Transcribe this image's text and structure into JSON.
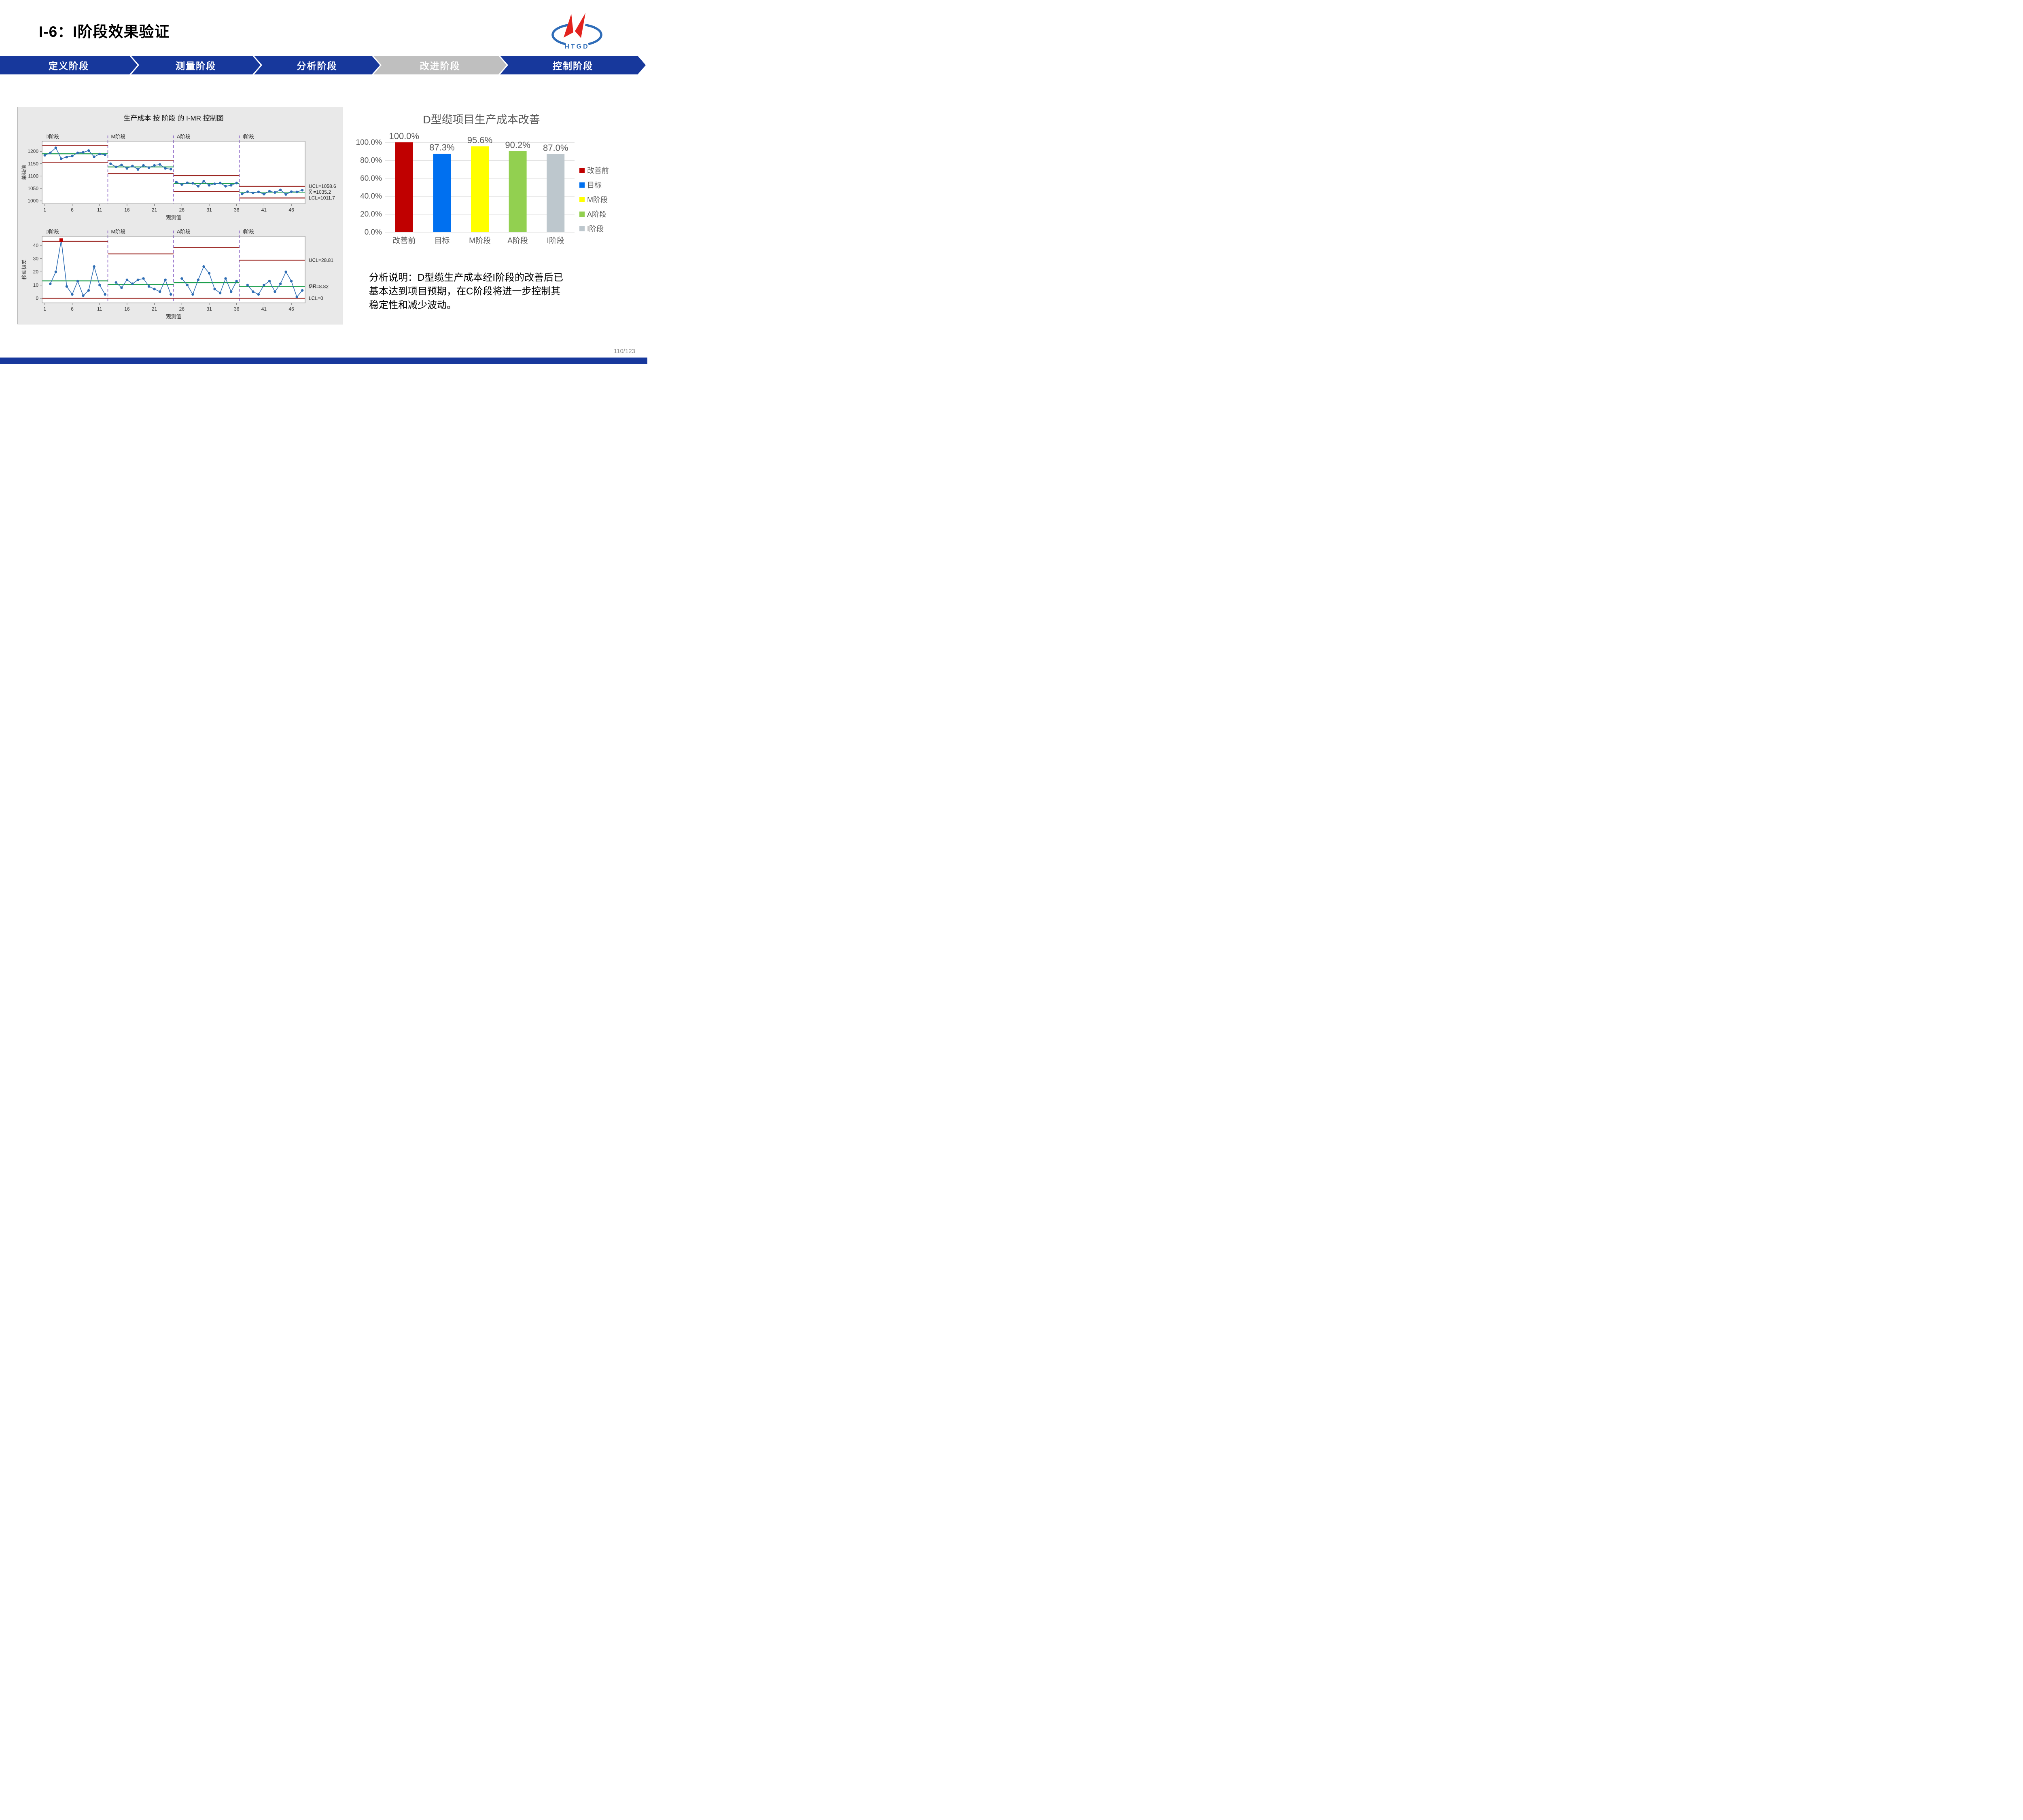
{
  "page": {
    "title": "I-6：I阶段效果验证",
    "page_number": "110/123",
    "accent_blue": "#17389C"
  },
  "logo": {
    "text": "HTGD",
    "red": "#E3231E",
    "blue": "#2E6CB8"
  },
  "phase_bar": {
    "blue": "#17389C",
    "gray": "#BFBFBF",
    "steps": [
      {
        "label": "定义阶段",
        "highlighted": false
      },
      {
        "label": "测量阶段",
        "highlighted": false
      },
      {
        "label": "分析阶段",
        "highlighted": false
      },
      {
        "label": "改进阶段",
        "highlighted": true
      },
      {
        "label": "控制阶段",
        "highlighted": false
      }
    ]
  },
  "chart_data": [
    {
      "type": "line",
      "chart": "I-MR control chart by stage",
      "title": "生产成本 按 阶段 的 I-MR 控制图",
      "xlabel": "观测值",
      "x_ticks": [
        1,
        6,
        11,
        16,
        21,
        26,
        31,
        36,
        41,
        46
      ],
      "x_range": [
        0.5,
        48.5
      ],
      "stage_boundaries": [
        12.5,
        24.5,
        36.5
      ],
      "colors": {
        "point": "#2E6DB4",
        "line": "#2E6DB4",
        "limit": "#9C2824",
        "center": "#1B9E4B",
        "boundary": "#8A64C6",
        "out_of_control": "#C00000",
        "panel_bg": "#E9E9E9",
        "plot_bg": "#FFFFFF"
      },
      "panels": [
        {
          "name": "individuals",
          "ylabel": "单独值",
          "ylim": [
            988,
            1241
          ],
          "yticks": [
            1000,
            1050,
            1100,
            1150,
            1200
          ],
          "annotations": [
            {
              "text": "UCL=1058.6",
              "value": 1058.6
            },
            {
              "text": "X̅ =1035.2",
              "value": 1035.2
            },
            {
              "text": "LCL=1011.7",
              "value": 1011.7
            }
          ],
          "stages": [
            {
              "label": "D阶段",
              "start_obs": 1,
              "ucl": 1224,
              "cl": 1190,
              "lcl": 1156,
              "values": [
                1184,
                1194,
                1214,
                1170,
                1177,
                1181,
                1194,
                1196,
                1203,
                1178,
                1189,
                1186
              ]
            },
            {
              "label": "M阶段",
              "start_obs": 13,
              "ucl": 1164,
              "cl": 1137,
              "lcl": 1110,
              "values": [
                1150,
                1137,
                1145,
                1131,
                1141,
                1127,
                1143,
                1134,
                1143,
                1147,
                1131,
                1128
              ]
            },
            {
              "label": "A阶段",
              "start_obs": 25,
              "ucl": 1102,
              "cl": 1070,
              "lcl": 1038,
              "values": [
                1076,
                1066,
                1073,
                1071,
                1059,
                1079,
                1063,
                1069,
                1072,
                1059,
                1063,
                1072
              ]
            },
            {
              "label": "I阶段",
              "start_obs": 37,
              "ucl": 1058.6,
              "cl": 1035.2,
              "lcl": 1011.7,
              "values": [
                1028,
                1037,
                1032,
                1036,
                1027,
                1039,
                1034,
                1044,
                1026,
                1037,
                1036,
                1043
              ]
            }
          ]
        },
        {
          "name": "moving_range",
          "ylabel": "移动极差",
          "ylim": [
            -3.5,
            47
          ],
          "yticks": [
            0,
            10,
            20,
            30,
            40
          ],
          "annotations": [
            {
              "text": "UCL=28.81",
              "value": 28.81
            },
            {
              "text": "M̅R̅=8.82",
              "value": 8.82
            },
            {
              "text": "LCL=0",
              "value": 0
            }
          ],
          "out_of_control": [
            {
              "obs": 4,
              "value": 44
            }
          ],
          "stages": [
            {
              "label": "D阶段",
              "start_obs": 2,
              "ucl": 43.1,
              "cl": 13.2,
              "lcl": 0,
              "values": [
                11,
                20,
                44,
                9,
                3,
                13,
                2,
                6,
                24,
                10,
                3
              ]
            },
            {
              "label": "M阶段",
              "start_obs": 14,
              "ucl": 33.6,
              "cl": 10.3,
              "lcl": 0,
              "values": [
                12,
                8,
                14,
                11,
                14,
                15,
                9,
                7,
                5,
                14,
                3
              ]
            },
            {
              "label": "A阶段",
              "start_obs": 26,
              "ucl": 38.5,
              "cl": 11.8,
              "lcl": 0,
              "values": [
                15,
                10,
                3,
                14,
                24,
                19,
                7,
                4,
                15,
                5,
                13
              ]
            },
            {
              "label": "I阶段",
              "start_obs": 38,
              "ucl": 28.81,
              "cl": 8.82,
              "lcl": 0,
              "values": [
                10,
                5,
                3,
                10,
                13,
                5,
                11,
                20,
                13,
                1,
                6
              ]
            }
          ]
        }
      ]
    },
    {
      "type": "bar",
      "title": "D型缆项目生产成本改善",
      "categories": [
        "改善前",
        "目标",
        "M阶段",
        "A阶段",
        "I阶段"
      ],
      "values": [
        100.0,
        87.3,
        95.6,
        90.2,
        87.0
      ],
      "data_labels": [
        "100.0%",
        "87.3%",
        "95.6%",
        "90.2%",
        "87.0%"
      ],
      "bar_colors": [
        "#C00000",
        "#0070F0",
        "#FFFF00",
        "#92D050",
        "#BDC7CD"
      ],
      "ylim": [
        0,
        100
      ],
      "ytick_labels": [
        "100.0%",
        "80.0%",
        "60.0%",
        "40.0%",
        "20.0%",
        "0.0%"
      ],
      "grid": true,
      "legend_position": "right",
      "legend": [
        {
          "label": "改善前",
          "color": "#C00000"
        },
        {
          "label": "目标",
          "color": "#0070F0"
        },
        {
          "label": "M阶段",
          "color": "#FFFF00"
        },
        {
          "label": "A阶段",
          "color": "#92D050"
        },
        {
          "label": "I阶段",
          "color": "#BDC7CD"
        }
      ]
    }
  ],
  "analysis": {
    "text": "分析说明：D型缆生产成本经I阶段的改善后已\n基本达到项目预期，在C阶段将进一步控制其\n稳定性和减少波动。"
  }
}
